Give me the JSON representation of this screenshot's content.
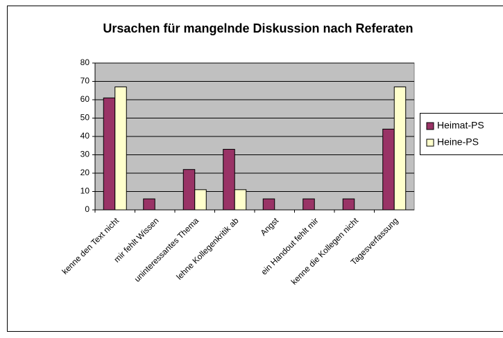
{
  "chart_data": {
    "type": "bar",
    "title": "Ursachen für mangelnde Diskussion nach Referaten",
    "categories": [
      "kenne den Text nicht",
      "mir fehlt Wissen",
      "uninteressantes Thema",
      "lehne Kollegenkritik ab",
      "Angst",
      "ein Handout fehlt mir",
      "kenne die Kollegen nicht",
      "Tagesverfassung"
    ],
    "series": [
      {
        "name": "Heimat-PS",
        "color": "#993366",
        "values": [
          61,
          6,
          22,
          33,
          6,
          6,
          6,
          44
        ]
      },
      {
        "name": "Heine-PS",
        "color": "#ffffcc",
        "values": [
          67,
          0,
          11,
          11,
          0,
          0,
          0,
          67
        ]
      }
    ],
    "ylim": [
      0,
      80
    ],
    "yticks": [
      0,
      10,
      20,
      30,
      40,
      50,
      60,
      70,
      80
    ],
    "grid": true,
    "legend": "right"
  }
}
